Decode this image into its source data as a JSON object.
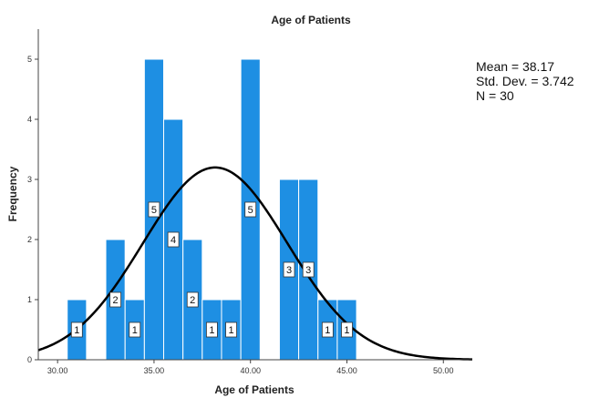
{
  "chart_data": {
    "type": "bar",
    "title": "Age of Patients",
    "xlabel": "Age of Patients",
    "ylabel": "Frequency",
    "xlim": [
      29,
      51.5
    ],
    "ylim": [
      0,
      5.5
    ],
    "x_ticks": [
      30,
      35,
      40,
      45,
      50
    ],
    "x_tick_labels": [
      "30.00",
      "35.00",
      "40.00",
      "45.00",
      "50.00"
    ],
    "y_ticks": [
      0,
      1,
      2,
      3,
      4,
      5
    ],
    "y_tick_labels": [
      "0",
      "1",
      "2",
      "3",
      "4",
      "5"
    ],
    "bin_width": 1,
    "bins": [
      {
        "start": 30.5,
        "count": 1
      },
      {
        "start": 32.5,
        "count": 2
      },
      {
        "start": 33.5,
        "count": 1
      },
      {
        "start": 34.5,
        "count": 5
      },
      {
        "start": 35.5,
        "count": 4
      },
      {
        "start": 36.5,
        "count": 2
      },
      {
        "start": 37.5,
        "count": 1
      },
      {
        "start": 38.5,
        "count": 1
      },
      {
        "start": 39.5,
        "count": 5
      },
      {
        "start": 41.5,
        "count": 3
      },
      {
        "start": 42.5,
        "count": 3
      },
      {
        "start": 43.5,
        "count": 1
      },
      {
        "start": 44.5,
        "count": 1
      }
    ],
    "normal_curve": {
      "mean": 38.17,
      "sd": 3.742,
      "n": 30
    },
    "stats_text": [
      "Mean = 38.17",
      "Std. Dev. = 3.742",
      "N = 30"
    ],
    "grid": false,
    "colors": {
      "bar_fill": "#1e8fe3",
      "bar_stroke": "#ffffff",
      "curve": "#000000"
    }
  }
}
